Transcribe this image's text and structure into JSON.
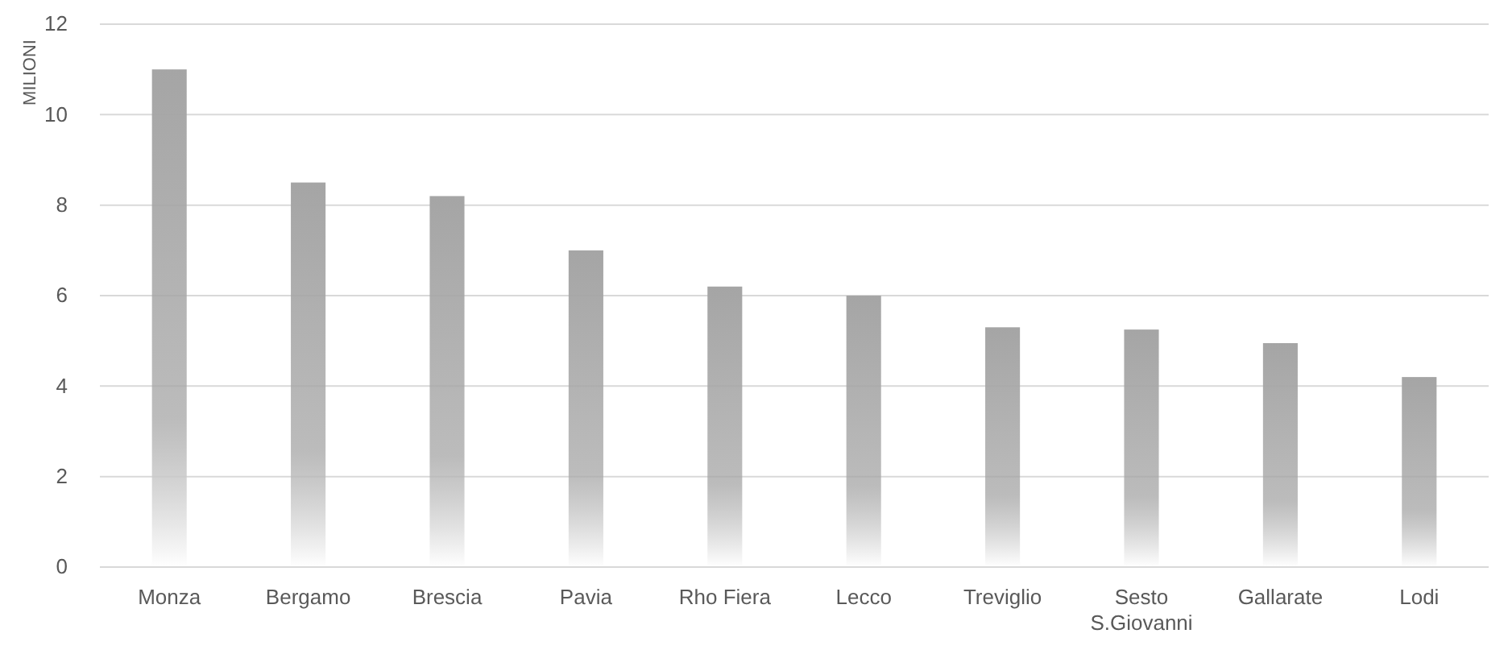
{
  "chart_data": {
    "type": "bar",
    "ylabel": "MILIONI",
    "categories": [
      "Monza",
      "Bergamo",
      "Brescia",
      "Pavia",
      "Rho Fiera",
      "Lecco",
      "Treviglio",
      "Sesto S.Giovanni",
      "Gallarate",
      "Lodi"
    ],
    "values": [
      11.0,
      8.5,
      8.2,
      7.0,
      6.2,
      6.0,
      5.3,
      5.25,
      4.95,
      4.2
    ],
    "color": "#a5a5a5",
    "ylim": [
      0,
      12
    ],
    "yticks": [
      0,
      2,
      4,
      6,
      8,
      10,
      12
    ],
    "grid": "y"
  }
}
